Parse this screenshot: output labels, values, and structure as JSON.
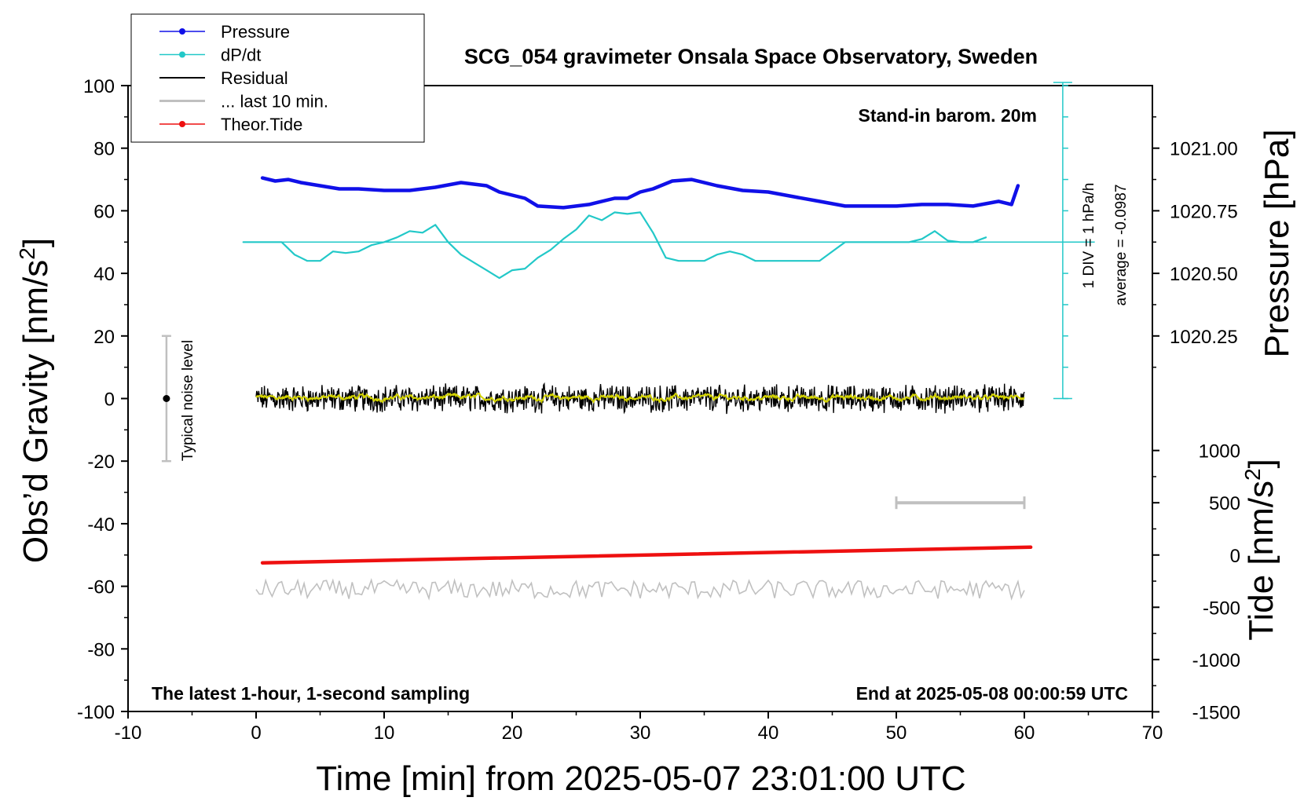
{
  "chart_data": {
    "type": "line",
    "title": "SCG_054 gravimeter Onsala Space Observatory, Sweden",
    "xlabel": "Time [min] from 2025-05-07 23:01:00 UTC",
    "xlim": [
      -10,
      70
    ],
    "xticks": [
      "-10",
      "0",
      "10",
      "20",
      "30",
      "40",
      "50",
      "60",
      "70"
    ],
    "ylabel_left": "Obs’d Gravity [nm/s²]",
    "ylim_left": [
      -100,
      100
    ],
    "yticks_left": [
      "100",
      "80",
      "60",
      "40",
      "20",
      "0",
      "-20",
      "-40",
      "-60",
      "-80",
      "-100"
    ],
    "ylabel_right_pressure": "Pressure [hPa]",
    "yticks_right_pressure": [
      "1021.00",
      "1020.75",
      "1020.50",
      "1020.25"
    ],
    "ylabel_right_tide": "Tide [nm/s²]",
    "yticks_right_tide": [
      "1000",
      "500",
      "0",
      "-500",
      "-1000",
      "-1500"
    ],
    "annotations": {
      "barometer": "Stand-in barom. 20m",
      "sampling": "The latest 1-hour, 1-second sampling",
      "end_time": "End at 2025-05-08 00:00:59 UTC",
      "noise": "Typical noise level",
      "div": "1 DIV = 1 hPa/h",
      "average": "average = -0.0987"
    },
    "legend": {
      "position": "top-left",
      "entries": [
        "Pressure",
        "dP/dt",
        "Residual",
        "... last 10 min.",
        "Theor.Tide"
      ]
    },
    "colors": {
      "pressure": "#1010e8",
      "dpdt": "#22c8c8",
      "residual": "#000000",
      "residual_smooth": "#d4d400",
      "last10": "#c0c0c0",
      "tide": "#ee1010"
    },
    "series": [
      {
        "name": "Pressure",
        "x": [
          0.5,
          1.5,
          2.5,
          3.5,
          5,
          6.5,
          8,
          10,
          12,
          14,
          16,
          18,
          19,
          21,
          22,
          24,
          26,
          28,
          29,
          30,
          31,
          32.5,
          34,
          36,
          38,
          40,
          42,
          44,
          46,
          48,
          50,
          52,
          54,
          56,
          58,
          59,
          59.5
        ],
        "y": [
          70.5,
          69.5,
          70,
          69,
          68,
          67,
          67,
          66.5,
          66.5,
          67.5,
          69,
          68,
          66,
          64,
          61.5,
          61,
          62,
          64,
          64,
          66,
          67,
          69.5,
          70,
          68,
          66.5,
          66,
          64.5,
          63,
          61.5,
          61.5,
          61.5,
          62,
          62,
          61.5,
          63,
          62,
          68
        ]
      },
      {
        "name": "dP/dt",
        "x": [
          -1,
          2,
          3,
          4,
          5,
          6,
          7,
          8,
          9,
          10,
          11,
          12,
          13,
          14,
          15,
          16,
          17,
          18,
          19,
          20,
          21,
          22,
          23,
          24,
          25,
          26,
          27,
          28,
          29,
          30,
          31,
          32,
          33,
          34,
          35,
          36,
          37,
          38,
          39,
          40,
          41,
          42,
          43,
          44,
          45,
          46,
          47,
          48,
          49,
          50,
          51,
          52,
          53,
          54,
          55,
          56,
          57
        ],
        "y": [
          50,
          50,
          46,
          44,
          44,
          47,
          46.5,
          47,
          49,
          50,
          51.5,
          53.5,
          53,
          55.5,
          50,
          46,
          43.5,
          41,
          38.5,
          41,
          41.5,
          45,
          47.5,
          51,
          54,
          58.5,
          57,
          59.5,
          59,
          59.5,
          53,
          45,
          44,
          44,
          44,
          46,
          47,
          46,
          44,
          44,
          44,
          44,
          44,
          44,
          47,
          50,
          50,
          50,
          50,
          50,
          50,
          51,
          53.5,
          50.5,
          50,
          50,
          51.5
        ]
      },
      {
        "name": "Theor.Tide",
        "x": [
          0.5,
          60.5
        ],
        "y": [
          -52.5,
          -47.5
        ]
      }
    ]
  }
}
